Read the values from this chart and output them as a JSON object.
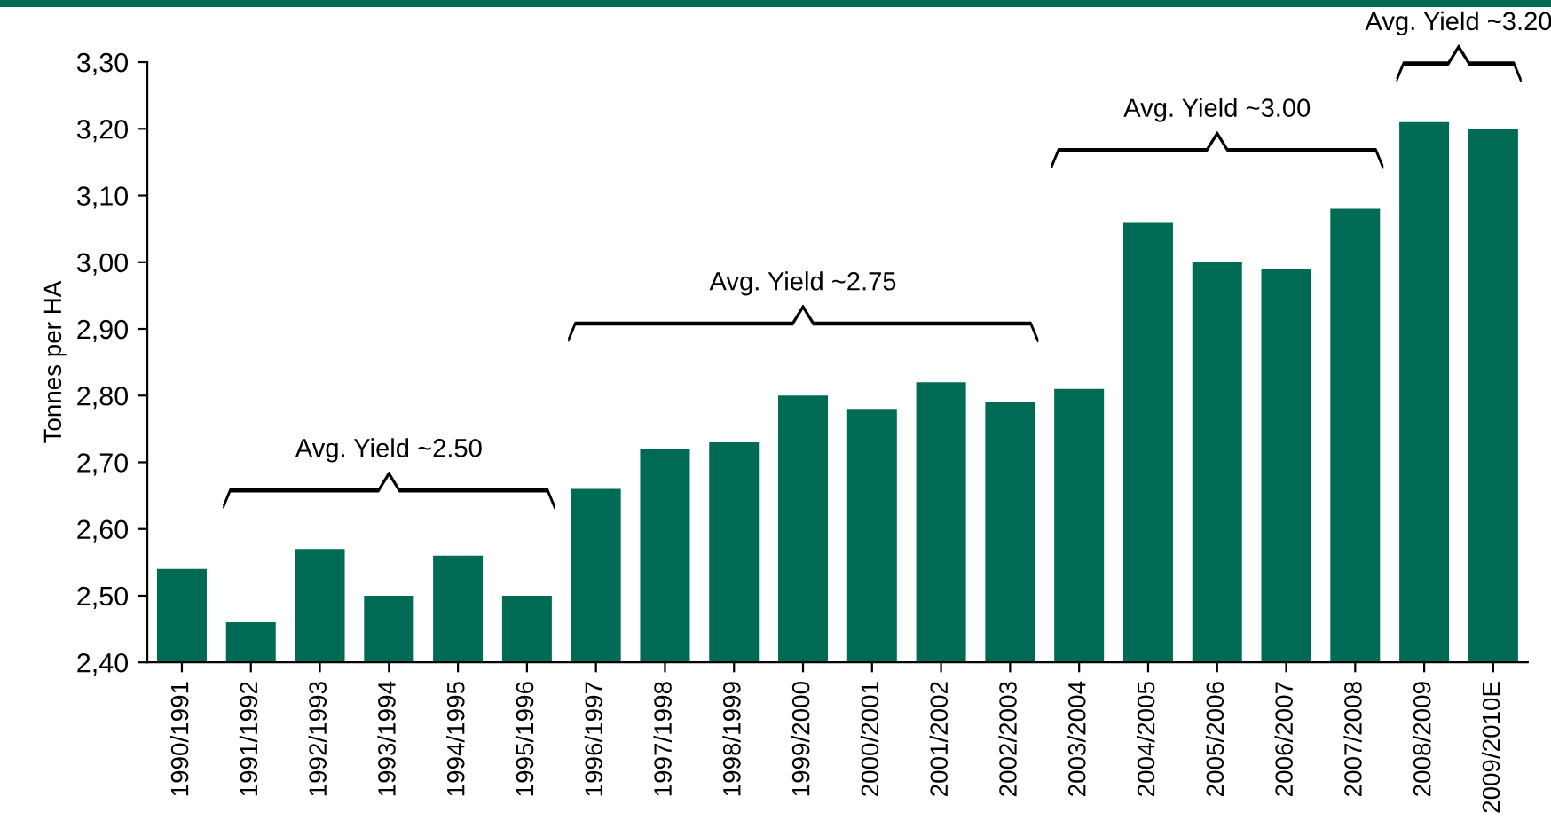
{
  "chart_data": {
    "type": "bar",
    "ylabel": "Tonnes per HA",
    "categories": [
      "1990/1991",
      "1991/1992",
      "1992/1993",
      "1993/1994",
      "1994/1995",
      "1995/1996",
      "1996/1997",
      "1997/1998",
      "1998/1999",
      "1999/2000",
      "2000/2001",
      "2001/2002",
      "2002/2003",
      "2003/2004",
      "2004/2005",
      "2005/2006",
      "2006/2007",
      "2007/2008",
      "2008/2009",
      "2009/2010E"
    ],
    "values": [
      2.54,
      2.46,
      2.57,
      2.5,
      2.56,
      2.5,
      2.66,
      2.72,
      2.73,
      2.8,
      2.78,
      2.82,
      2.79,
      2.81,
      3.06,
      3.0,
      2.99,
      3.08,
      3.21,
      3.2
    ],
    "color": "#006b54",
    "ylim": [
      2.4,
      3.3
    ],
    "yticks": [
      {
        "value": 2.4,
        "label": "2,40"
      },
      {
        "value": 2.5,
        "label": "2,50"
      },
      {
        "value": 2.6,
        "label": "2,60"
      },
      {
        "value": 2.7,
        "label": "2,70"
      },
      {
        "value": 2.8,
        "label": "2,80"
      },
      {
        "value": 2.9,
        "label": "2,90"
      },
      {
        "value": 3.0,
        "label": "3,00"
      },
      {
        "value": 3.1,
        "label": "3,10"
      },
      {
        "value": 3.2,
        "label": "3,20"
      },
      {
        "value": 3.3,
        "label": "3,30"
      }
    ],
    "annotations": [
      "Avg. Yield ~2.50",
      "Avg. Yield ~2.75",
      "Avg. Yield ~3.00",
      "Avg. Yield ~3.20"
    ],
    "grid": false
  }
}
